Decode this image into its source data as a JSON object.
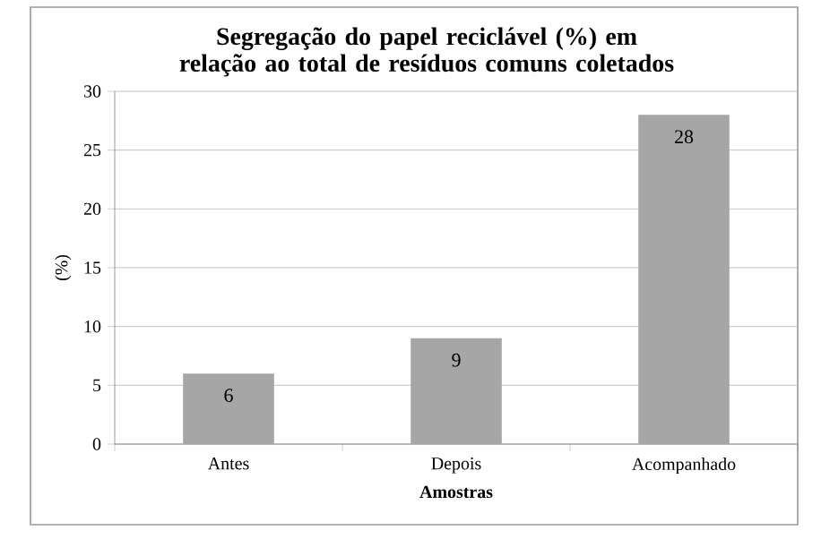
{
  "chart_data": {
    "type": "bar",
    "title": "Segregação do papel reciclável (%) em relação ao total de resíduos comuns coletados",
    "xlabel": "Amostras",
    "ylabel": "(%)",
    "categories": [
      "Antes",
      "Depois",
      "Acompanhado"
    ],
    "values": [
      6,
      9,
      28
    ],
    "color": "#a6a6a6",
    "ylim": [
      0,
      30
    ],
    "yticks": [
      0,
      5,
      10,
      15,
      20,
      25,
      30
    ],
    "grid": "y",
    "data_labels": true
  }
}
